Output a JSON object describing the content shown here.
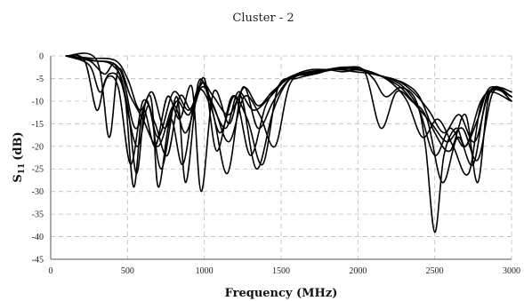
{
  "chart_data": {
    "type": "line",
    "title": "Cluster - 2",
    "xlabel": "Frequency (MHz)",
    "ylabel_main": "S",
    "ylabel_sub": "11",
    "ylabel_unit": "(dB)",
    "xlim": [
      0,
      3000
    ],
    "ylim": [
      -45,
      0
    ],
    "xticks": [
      0,
      500,
      1000,
      1500,
      2000,
      2500,
      3000
    ],
    "yticks": [
      0,
      -5,
      -10,
      -15,
      -20,
      -25,
      -30,
      -35,
      -40,
      -45
    ],
    "grid": true,
    "legend": "none",
    "series": [
      {
        "x": [
          100,
          250,
          350,
          420,
          500,
          560,
          620,
          700,
          800,
          900,
          1000,
          1100,
          1200,
          1300,
          1400,
          1500,
          1600,
          1700,
          1800,
          1900,
          2000,
          2100,
          2200,
          2300,
          2400,
          2500,
          2600,
          2700,
          2800,
          2900,
          3000
        ],
        "y": [
          0,
          -1,
          -4,
          -2,
          -11,
          -26,
          -10,
          -18,
          -8,
          -12,
          -6,
          -17,
          -9,
          -22,
          -11,
          -6,
          -4,
          -3,
          -3,
          -2.5,
          -3,
          -4,
          -5,
          -7,
          -12,
          -22,
          -16,
          -20,
          -10,
          -7,
          -8
        ]
      },
      {
        "x": [
          100,
          250,
          400,
          480,
          540,
          600,
          680,
          760,
          840,
          920,
          980,
          1060,
          1160,
          1240,
          1340,
          1450,
          1560,
          1700,
          1850,
          2000,
          2100,
          2180,
          2280,
          2380,
          2440,
          2500,
          2560,
          2640,
          2700,
          2780,
          2860,
          3000
        ],
        "y": [
          0,
          -1,
          -2,
          -8,
          -29,
          -12,
          -20,
          -9,
          -14,
          -7,
          -30,
          -8,
          -15,
          -9,
          -25,
          -12,
          -5,
          -3.5,
          -3,
          -2.5,
          -5,
          -9,
          -7,
          -10,
          -20,
          -39,
          -22,
          -16,
          -20,
          -14,
          -7,
          -9
        ]
      },
      {
        "x": [
          100,
          280,
          450,
          550,
          650,
          700,
          780,
          860,
          950,
          1050,
          1150,
          1250,
          1350,
          1450,
          1560,
          1680,
          1800,
          1950,
          2050,
          2150,
          2250,
          2350,
          2450,
          2550,
          2650,
          2750,
          2850,
          3000
        ],
        "y": [
          0,
          -1,
          -3,
          -16,
          -9,
          -29,
          -14,
          -24,
          -8,
          -12,
          -26,
          -7,
          -16,
          -10,
          -5,
          -4,
          -3,
          -2.5,
          -4,
          -16,
          -8,
          -10,
          -14,
          -28,
          -18,
          -24,
          -8,
          -9
        ]
      },
      {
        "x": [
          100,
          250,
          320,
          380,
          460,
          560,
          640,
          720,
          820,
          880,
          960,
          1040,
          1140,
          1220,
          1320,
          1430,
          1540,
          1660,
          1780,
          1900,
          2020,
          2120,
          2220,
          2320,
          2420,
          2520,
          2620,
          2720,
          2820,
          3000
        ],
        "y": [
          0,
          -2,
          -8,
          -4,
          -6,
          -20,
          -11,
          -25,
          -9,
          -28,
          -6,
          -10,
          -16,
          -8,
          -12,
          -9,
          -5,
          -4,
          -3,
          -3.5,
          -3,
          -4,
          -6,
          -10,
          -18,
          -14,
          -20,
          -26,
          -9,
          -10
        ]
      },
      {
        "x": [
          100,
          220,
          300,
          360,
          440,
          520,
          600,
          680,
          760,
          840,
          920,
          1000,
          1080,
          1180,
          1280,
          1380,
          1480,
          1600,
          1720,
          1850,
          1980,
          2100,
          2200,
          2300,
          2400,
          2500,
          2600,
          2700,
          2780,
          2860,
          3000
        ],
        "y": [
          0,
          -1,
          -12,
          -5,
          -7,
          -24,
          -10,
          -15,
          -22,
          -9,
          -12,
          -5,
          -21,
          -9,
          -14,
          -24,
          -7,
          -5,
          -4,
          -3,
          -3.5,
          -4,
          -5,
          -6,
          -9,
          -17,
          -21,
          -13,
          -28,
          -8,
          -9
        ]
      },
      {
        "x": [
          100,
          300,
          380,
          440,
          520,
          600,
          700,
          800,
          880,
          980,
          1060,
          1160,
          1260,
          1360,
          1460,
          1560,
          1700,
          1840,
          1960,
          2080,
          2180,
          2280,
          2380,
          2480,
          2580,
          2680,
          2780,
          2880,
          3000
        ],
        "y": [
          0,
          -1,
          -18,
          -3,
          -9,
          -14,
          -20,
          -11,
          -17,
          -7,
          -11,
          -19,
          -9,
          -13,
          -20,
          -6,
          -4,
          -2.8,
          -3,
          -3.5,
          -5,
          -7,
          -11,
          -15,
          -19,
          -16,
          -23,
          -8,
          -10
        ]
      },
      {
        "x": [
          100,
          260,
          420,
          500,
          580,
          660,
          740,
          820,
          900,
          980,
          1060,
          1160,
          1260,
          1350,
          1440,
          1550,
          1680,
          1820,
          1950,
          2060,
          2160,
          2260,
          2360,
          2460,
          2560,
          2660,
          2760,
          2860,
          3000
        ],
        "y": [
          0,
          -0.5,
          -1,
          -5,
          -12,
          -8,
          -16,
          -10,
          -13,
          -6,
          -9,
          -13,
          -7,
          -11,
          -8,
          -5,
          -3.5,
          -3,
          -2.5,
          -3.5,
          -4.5,
          -5.5,
          -8,
          -12,
          -17,
          -13,
          -19,
          -8,
          -9
        ]
      }
    ]
  }
}
